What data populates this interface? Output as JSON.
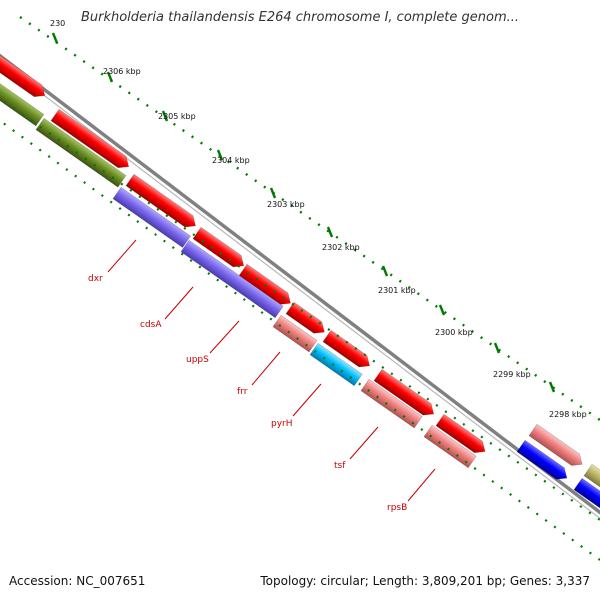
{
  "map": {
    "title": "Burkholderia thailandensis E264 chromosome I, complete genom...",
    "accession": "Accession: NC_007651",
    "summary": "Topology: circular; Length: 3,809,201 bp; Genes: 3,337"
  },
  "scale": {
    "ticks": [
      "230",
      "2306 kbp",
      "2305 kbp",
      "2304 kbp",
      "2303 kbp",
      "2302 kbp",
      "2301 kbp",
      "2300 kbp",
      "2299 kbp",
      "2298 kbp"
    ]
  },
  "genes": {
    "labels": [
      "dxr",
      "cdsA",
      "uppS",
      "frr",
      "pyrH",
      "tsf",
      "rpsB"
    ]
  },
  "colors": {
    "backbone": "#808080",
    "cds_forward": "#ff0000",
    "cds_light": "#f08080",
    "olive": "#6b8e23",
    "purple": "#7b68ee",
    "cyan": "#00bfff",
    "blue": "#0000ff",
    "khaki": "#bdb76b",
    "tick_green": "#007a00",
    "label_red": "#cc0000"
  }
}
